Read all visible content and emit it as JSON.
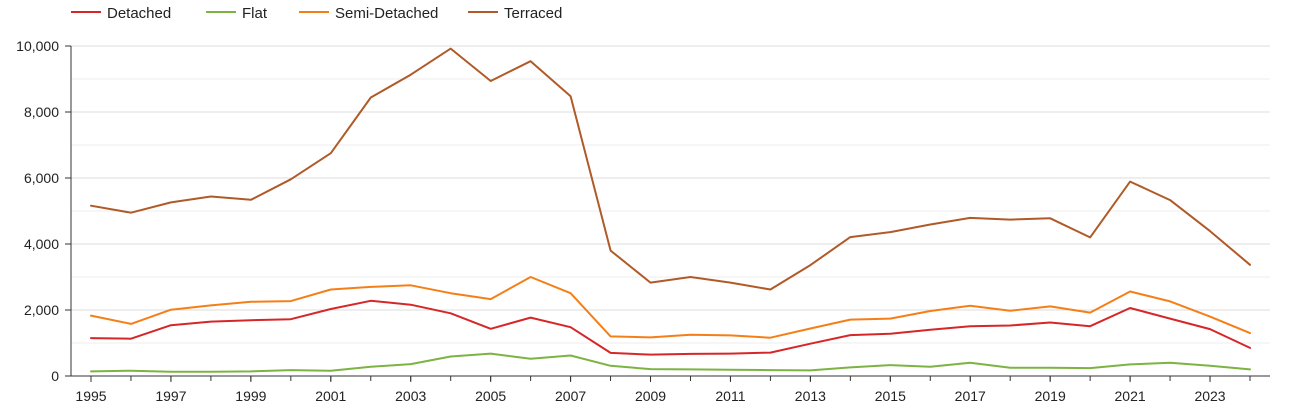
{
  "chart_data": {
    "type": "line",
    "title": "",
    "xlabel": "",
    "ylabel": "",
    "legend_position": "top-left",
    "grid": true,
    "x": [
      1995,
      1996,
      1997,
      1998,
      1999,
      2000,
      2001,
      2002,
      2003,
      2004,
      2005,
      2006,
      2007,
      2008,
      2009,
      2010,
      2011,
      2012,
      2013,
      2014,
      2015,
      2016,
      2017,
      2018,
      2019,
      2020,
      2021,
      2022,
      2023,
      2024
    ],
    "xlim": [
      1995,
      2024
    ],
    "ylim": [
      0,
      10000
    ],
    "x_tick_values": [
      1995,
      1997,
      1999,
      2001,
      2003,
      2005,
      2007,
      2009,
      2011,
      2013,
      2015,
      2017,
      2019,
      2021,
      2023
    ],
    "x_tick_labels": [
      "1995",
      "1997",
      "1999",
      "2001",
      "2003",
      "2005",
      "2007",
      "2009",
      "2011",
      "2013",
      "2015",
      "2017",
      "2019",
      "2021",
      "2023"
    ],
    "y_tick_values": [
      0,
      2000,
      4000,
      6000,
      8000,
      10000
    ],
    "y_tick_labels": [
      "0",
      "2,000",
      "4,000",
      "6,000",
      "8,000",
      "10,000"
    ],
    "series": [
      {
        "name": "Detached",
        "color": "#d62728",
        "values": [
          1150,
          1130,
          1540,
          1650,
          1690,
          1720,
          2030,
          2280,
          2160,
          1900,
          1430,
          1770,
          1480,
          700,
          650,
          670,
          680,
          710,
          980,
          1240,
          1280,
          1400,
          1510,
          1530,
          1620,
          1510,
          2060,
          1740,
          1420,
          850
        ]
      },
      {
        "name": "Flat",
        "color": "#7cb342",
        "values": [
          140,
          160,
          130,
          130,
          140,
          180,
          160,
          280,
          360,
          590,
          680,
          520,
          620,
          310,
          210,
          200,
          190,
          180,
          170,
          260,
          330,
          280,
          400,
          250,
          250,
          240,
          350,
          400,
          310,
          200
        ]
      },
      {
        "name": "Semi-Detached",
        "color": "#f57f17",
        "values": [
          1830,
          1580,
          2010,
          2140,
          2250,
          2270,
          2620,
          2700,
          2750,
          2510,
          2330,
          3000,
          2510,
          1200,
          1170,
          1250,
          1230,
          1160,
          1440,
          1710,
          1740,
          1970,
          2130,
          1980,
          2110,
          1920,
          2560,
          2260,
          1800,
          1300
        ]
      },
      {
        "name": "Terraced",
        "color": "#b05a28",
        "values": [
          5160,
          4950,
          5260,
          5440,
          5340,
          5960,
          6750,
          8440,
          9130,
          9920,
          8940,
          9540,
          8480,
          3800,
          2830,
          3000,
          2830,
          2620,
          3360,
          4210,
          4360,
          4590,
          4790,
          4740,
          4780,
          4200,
          5890,
          5330,
          4390,
          3370
        ]
      }
    ]
  }
}
